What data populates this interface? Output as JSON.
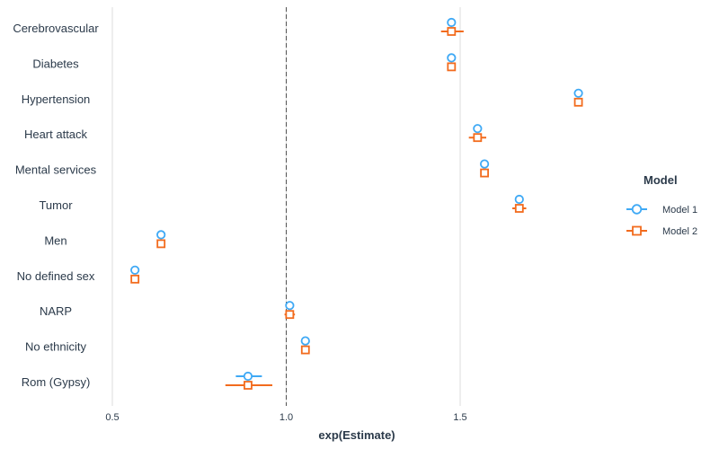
{
  "chart_data": {
    "type": "scatter",
    "title": "",
    "xlabel": "exp(Estimate)",
    "ylabel": "",
    "xlim": [
      0.49,
      1.93
    ],
    "xticks": [
      0.5,
      1.0,
      1.5
    ],
    "xtick_labels": [
      "0.5",
      "1.0",
      "1.5"
    ],
    "reference_line": 1.0,
    "categories": [
      "Cerebrovascular",
      "Diabetes",
      "Hypertension",
      "Heart attack",
      "Mental services",
      "Tumor",
      "Men",
      "No defined sex",
      "NARP",
      "No ethnicity",
      "Rom (Gypsy)"
    ],
    "legend": {
      "title": "Model",
      "placement": "right"
    },
    "series": [
      {
        "name": "Model 1",
        "color": "#3fa9f5",
        "marker": "circle",
        "values": [
          1.475,
          1.475,
          1.84,
          1.55,
          1.57,
          1.67,
          0.64,
          0.565,
          1.01,
          1.055,
          0.89
        ],
        "ci_low": [
          1.475,
          1.475,
          1.84,
          1.55,
          1.57,
          1.67,
          0.64,
          0.565,
          1.01,
          1.055,
          0.855
        ],
        "ci_high": [
          1.475,
          1.475,
          1.84,
          1.55,
          1.57,
          1.67,
          0.64,
          0.565,
          1.01,
          1.055,
          0.93
        ]
      },
      {
        "name": "Model 2",
        "color": "#f26b1d",
        "marker": "square",
        "values": [
          1.475,
          1.475,
          1.84,
          1.55,
          1.57,
          1.67,
          0.64,
          0.565,
          1.01,
          1.055,
          0.89
        ],
        "ci_low": [
          1.445,
          1.475,
          1.84,
          1.525,
          1.57,
          1.65,
          0.64,
          0.565,
          0.995,
          1.055,
          0.825
        ],
        "ci_high": [
          1.51,
          1.475,
          1.84,
          1.575,
          1.57,
          1.69,
          0.64,
          0.565,
          1.025,
          1.055,
          0.96
        ]
      }
    ]
  }
}
